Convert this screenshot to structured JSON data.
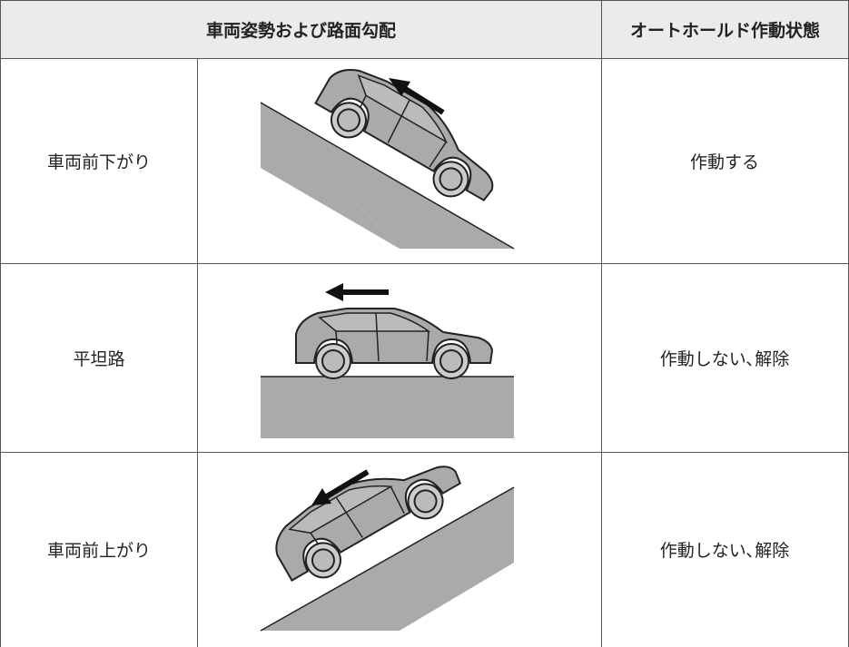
{
  "table": {
    "headers": [
      "車両姿勢および路面勾配",
      "オートホールド作動状態"
    ],
    "rows": [
      {
        "condition": "車両前下がり",
        "status": "作動する"
      },
      {
        "condition": "平坦路",
        "status": "作動しない､解除"
      },
      {
        "condition": "車両前上がり",
        "status": "作動しない､解除"
      }
    ]
  }
}
